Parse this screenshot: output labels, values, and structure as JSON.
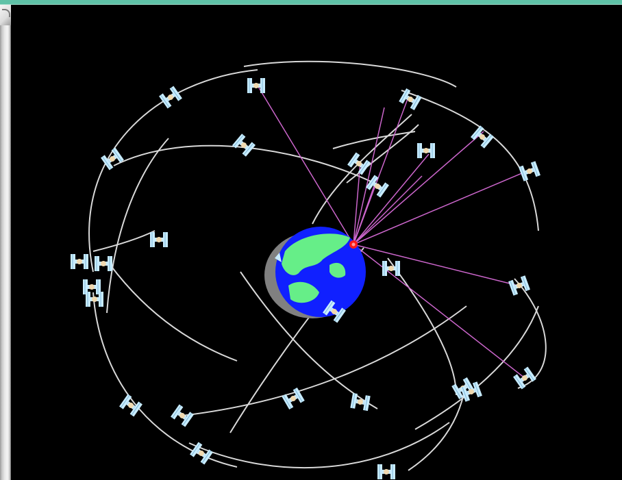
{
  "window": {
    "accent_color": "#5fc2a7",
    "side_panel_color": "#dcdcdc"
  },
  "scene": {
    "background_color": "#000000",
    "orbit_color": "#d9d9d9",
    "signal_line_color": "#cc66cc",
    "receiver_color": "#ff1a1a",
    "earth": {
      "ocean_color": "#1020ff",
      "land_color": "#66ee88",
      "shadow_color": "#808080"
    },
    "satellite": {
      "panel_color": "#c8ecff",
      "body_color": "#f0d9b0",
      "icon": "satellite-icon"
    },
    "satellite_count": 30,
    "visible_signal_count": 11
  }
}
